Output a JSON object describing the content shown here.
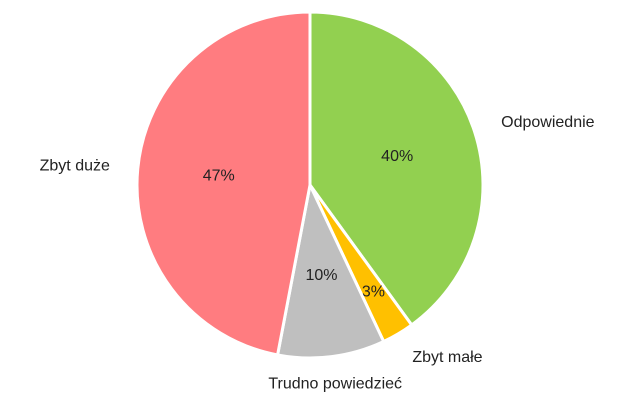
{
  "chart_data": {
    "type": "pie",
    "categories": [
      "Odpowiednie",
      "Zbyt małe",
      "Trudno powiedzieć",
      "Zbyt duże"
    ],
    "values": [
      40,
      3,
      10,
      47
    ],
    "value_labels": [
      "40%",
      "3%",
      "10%",
      "47%"
    ],
    "colors": [
      "#92d050",
      "#ffc000",
      "#bfbfbf",
      "#ff7c80"
    ]
  }
}
